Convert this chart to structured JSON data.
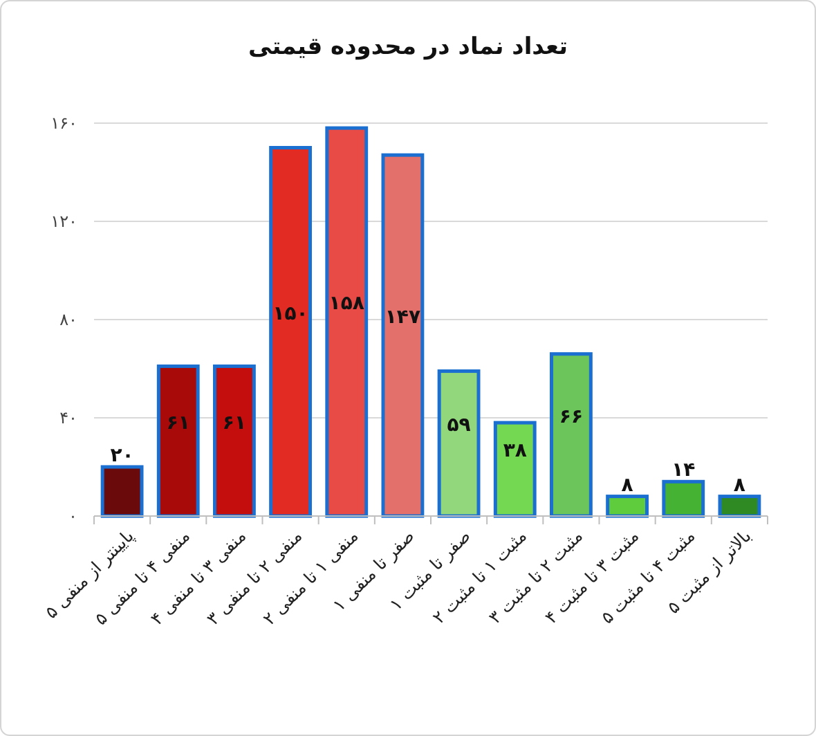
{
  "chart_data": {
    "type": "bar",
    "title": "تعداد نماد در محدوده قیمتی",
    "categories": [
      "پایینتر از منفی ۵",
      "منفی ۴ تا منفی ۵",
      "منفی ۳ تا منفی ۴",
      "منفی ۲ تا منفی ۳",
      "منفی ۱ تا منفی ۲",
      "صفر تا منفی ۱",
      "صفر تا مثبت ۱",
      "مثبت ۱ تا مثبت ۲",
      "مثبت ۲ تا مثبت ۳",
      "مثبت ۳ تا مثبت ۴",
      "مثبت ۴ تا مثبت ۵",
      "بالاتر از مثبت ۵"
    ],
    "values": [
      20,
      61,
      61,
      150,
      158,
      147,
      59,
      38,
      66,
      8,
      14,
      8
    ],
    "value_labels": [
      "۲۰",
      "۶۱",
      "۶۱",
      "۱۵۰",
      "۱۵۸",
      "۱۴۷",
      "۵۹",
      "۳۸",
      "۶۶",
      "۸",
      "۱۴",
      "۸"
    ],
    "colors": [
      "#6b0a0a",
      "#a80a0a",
      "#c40d0d",
      "#e22b22",
      "#e84b45",
      "#e4706b",
      "#93d77c",
      "#74d852",
      "#6cc55b",
      "#5fcc3d",
      "#45b234",
      "#2f8a24"
    ],
    "ylim": [
      0,
      160
    ],
    "yticks": [
      {
        "value": 0,
        "label": "۰"
      },
      {
        "value": 40,
        "label": "۴۰"
      },
      {
        "value": 80,
        "label": "۸۰"
      },
      {
        "value": 120,
        "label": "۱۲۰"
      },
      {
        "value": 160,
        "label": "۱۶۰"
      }
    ],
    "grid": "y"
  }
}
